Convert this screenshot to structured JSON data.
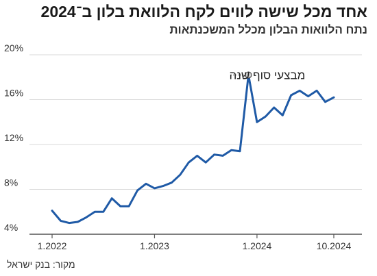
{
  "title": "אחד מכל שישה לווים לקח הלוואת בלון ב־2024",
  "subtitle": "נתח הלוואות הבלון מכלל המשכנתאות",
  "source": "מקור: בנק ישראל",
  "colors": {
    "line": "#1f5aa6",
    "grid": "#d9d9d9",
    "axis": "#555555"
  },
  "chart_data": {
    "type": "line",
    "title": "אחד מכל שישה לווים לקח הלוואת בלון ב־2024",
    "xlabel": "",
    "ylabel": "",
    "ylim": [
      4,
      20
    ],
    "yticks": [
      4,
      8,
      12,
      16,
      20
    ],
    "ytick_labels": [
      "4%",
      "8%",
      "12%",
      "16%",
      "20%"
    ],
    "xticks": [
      0,
      12,
      24,
      33
    ],
    "xtick_labels": [
      "1.2022",
      "1.2023",
      "1.2024",
      "10.2024"
    ],
    "grid": true,
    "annotation": {
      "text": "מבצעי סוף שנה",
      "x": 23,
      "y": 18.2
    },
    "series": [
      {
        "x": [
          0,
          1,
          2,
          3,
          4,
          5,
          6,
          7,
          8,
          9,
          10,
          11,
          12,
          13,
          14,
          15,
          16,
          17,
          18,
          19,
          20,
          21,
          22,
          23,
          24,
          25,
          26,
          27,
          28,
          29,
          30,
          31,
          32,
          33
        ],
        "values": [
          6.1,
          5.2,
          5.0,
          5.1,
          5.5,
          6.0,
          6.0,
          7.2,
          6.5,
          6.5,
          7.9,
          8.5,
          8.1,
          8.3,
          8.6,
          9.3,
          10.4,
          11.0,
          10.4,
          11.1,
          11.0,
          11.5,
          11.4,
          18.2,
          14.0,
          14.5,
          15.3,
          14.6,
          16.4,
          16.8,
          16.3,
          16.8,
          15.8,
          16.2
        ]
      }
    ]
  }
}
